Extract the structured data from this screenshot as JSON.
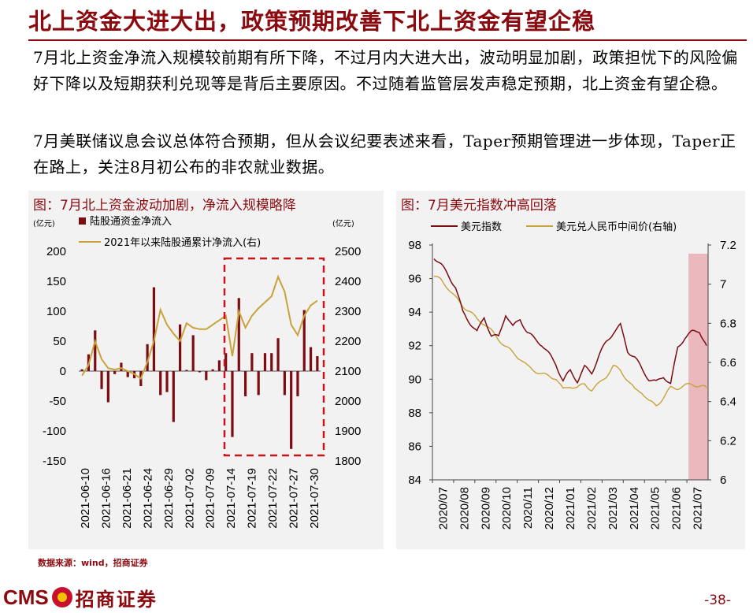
{
  "header": {
    "title": "北上资金大进大出，政策预期改善下北上资金有望企稳"
  },
  "body": {
    "para1": "7月北上资金净流入规模较前期有所下降，不过月内大进大出，波动明显加剧，政策担忧下的风险偏好下降以及短期获利兑现等是背后主要原因。不过随着监管层发声稳定预期，北上资金有望企稳。",
    "para2": "7月美联储议息会议总体符合预期，但从会议纪要表述来看，Taper预期管理进一步体现，Taper正在路上，关注8月初公布的非农就业数据。"
  },
  "footer": {
    "source": "数据来源：wind，招商证券",
    "logo_text": "CMS",
    "logo_cn": "招商证券",
    "page": "-38-"
  },
  "colors": {
    "dark_red": "#7b0c12",
    "gold": "#c9a23a",
    "title_red": "#8b0a0f",
    "highlight": "#eab8bd"
  },
  "chart_data": [
    {
      "type": "bar",
      "title": "图：7月北上资金波动加剧，净流入规模略降",
      "left_unit": "(亿元)",
      "right_unit": "(亿元)",
      "x_ticks": [
        "2021-06-10",
        "2021-06-16",
        "2021-06-21",
        "2021-06-24",
        "2021-06-29",
        "2021-07-02",
        "2021-07-09",
        "2021-07-14",
        "2021-07-19",
        "2021-07-22",
        "2021-07-27",
        "2021-07-30"
      ],
      "ylim": [
        -150,
        200
      ],
      "y_ticks": [
        200,
        150,
        100,
        50,
        0,
        -50,
        -100,
        -150
      ],
      "y2lim": [
        1800,
        2500
      ],
      "y2_ticks": [
        2500,
        2400,
        2300,
        2200,
        2100,
        2000,
        1900,
        1800
      ],
      "series": [
        {
          "name": "陆股通资金净流入",
          "kind": "bar",
          "axis": "left",
          "values": [
            3,
            28,
            68,
            -30,
            -52,
            -5,
            14,
            -10,
            -12,
            -25,
            45,
            140,
            -40,
            -35,
            -85,
            78,
            2,
            60,
            -2,
            -15,
            3,
            18,
            30,
            -110,
            122,
            -42,
            30,
            -40,
            30,
            30,
            55,
            -40,
            -130,
            -42,
            102,
            40,
            25
          ]
        },
        {
          "name": "2021年以来陆股通累计净流入(右)",
          "kind": "line",
          "axis": "right",
          "values": [
            2085,
            2120,
            2200,
            2140,
            2110,
            2105,
            2110,
            2100,
            2090,
            2075,
            2130,
            2200,
            2305,
            2255,
            2225,
            2200,
            2260,
            2245,
            2240,
            2240,
            2255,
            2270,
            2285,
            2150,
            2300,
            2245,
            2285,
            2310,
            2330,
            2350,
            2415,
            2365,
            2255,
            2220,
            2285,
            2320,
            2335
          ]
        }
      ],
      "highlight_range": [
        "2021-07-14",
        "2021-07-30"
      ]
    },
    {
      "type": "line",
      "title": "图：7月美元指数冲高回落",
      "x_ticks": [
        "2020/07",
        "2020/08",
        "2020/09",
        "2020/10",
        "2020/11",
        "2020/12",
        "2021/01",
        "2021/02",
        "2021/03",
        "2021/04",
        "2021/05",
        "2021/06",
        "2021/07"
      ],
      "ylim": [
        84,
        98
      ],
      "y_ticks": [
        98,
        96,
        94,
        92,
        90,
        88,
        86,
        84
      ],
      "y2lim": [
        6,
        7.2
      ],
      "y2_ticks": [
        "7.2",
        "7",
        "6.8",
        "6.6",
        "6.4",
        "6.2",
        "6"
      ],
      "series": [
        {
          "name": "美元指数",
          "axis": "left",
          "values": [
            97.3,
            96.8,
            96.2,
            95.5,
            94.0,
            93.4,
            92.8,
            93.7,
            92.6,
            92.5,
            93.9,
            93.1,
            93.6,
            92.8,
            92.4,
            92.1,
            91.5,
            90.9,
            89.9,
            90.5,
            89.9,
            90.7,
            90.4,
            91.4,
            92.2,
            92.8,
            93.2,
            91.7,
            91.3,
            90.6,
            90.0,
            89.8,
            90.2,
            89.7,
            91.9,
            92.5,
            92.8,
            92.9,
            92.0
          ]
        },
        {
          "name": "美元兑人民币中间价(右轴)",
          "axis": "right",
          "values": [
            7.04,
            7.02,
            6.98,
            6.93,
            6.89,
            6.86,
            6.82,
            6.8,
            6.76,
            6.72,
            6.68,
            6.65,
            6.62,
            6.58,
            6.56,
            6.54,
            6.53,
            6.52,
            6.46,
            6.48,
            6.47,
            6.49,
            6.46,
            6.49,
            6.53,
            6.58,
            6.56,
            6.51,
            6.46,
            6.45,
            6.4,
            6.38,
            6.42,
            6.47,
            6.47,
            6.48,
            6.49,
            6.48,
            6.47
          ]
        }
      ],
      "highlight_range": [
        "2021/07",
        "2021/08"
      ]
    }
  ]
}
